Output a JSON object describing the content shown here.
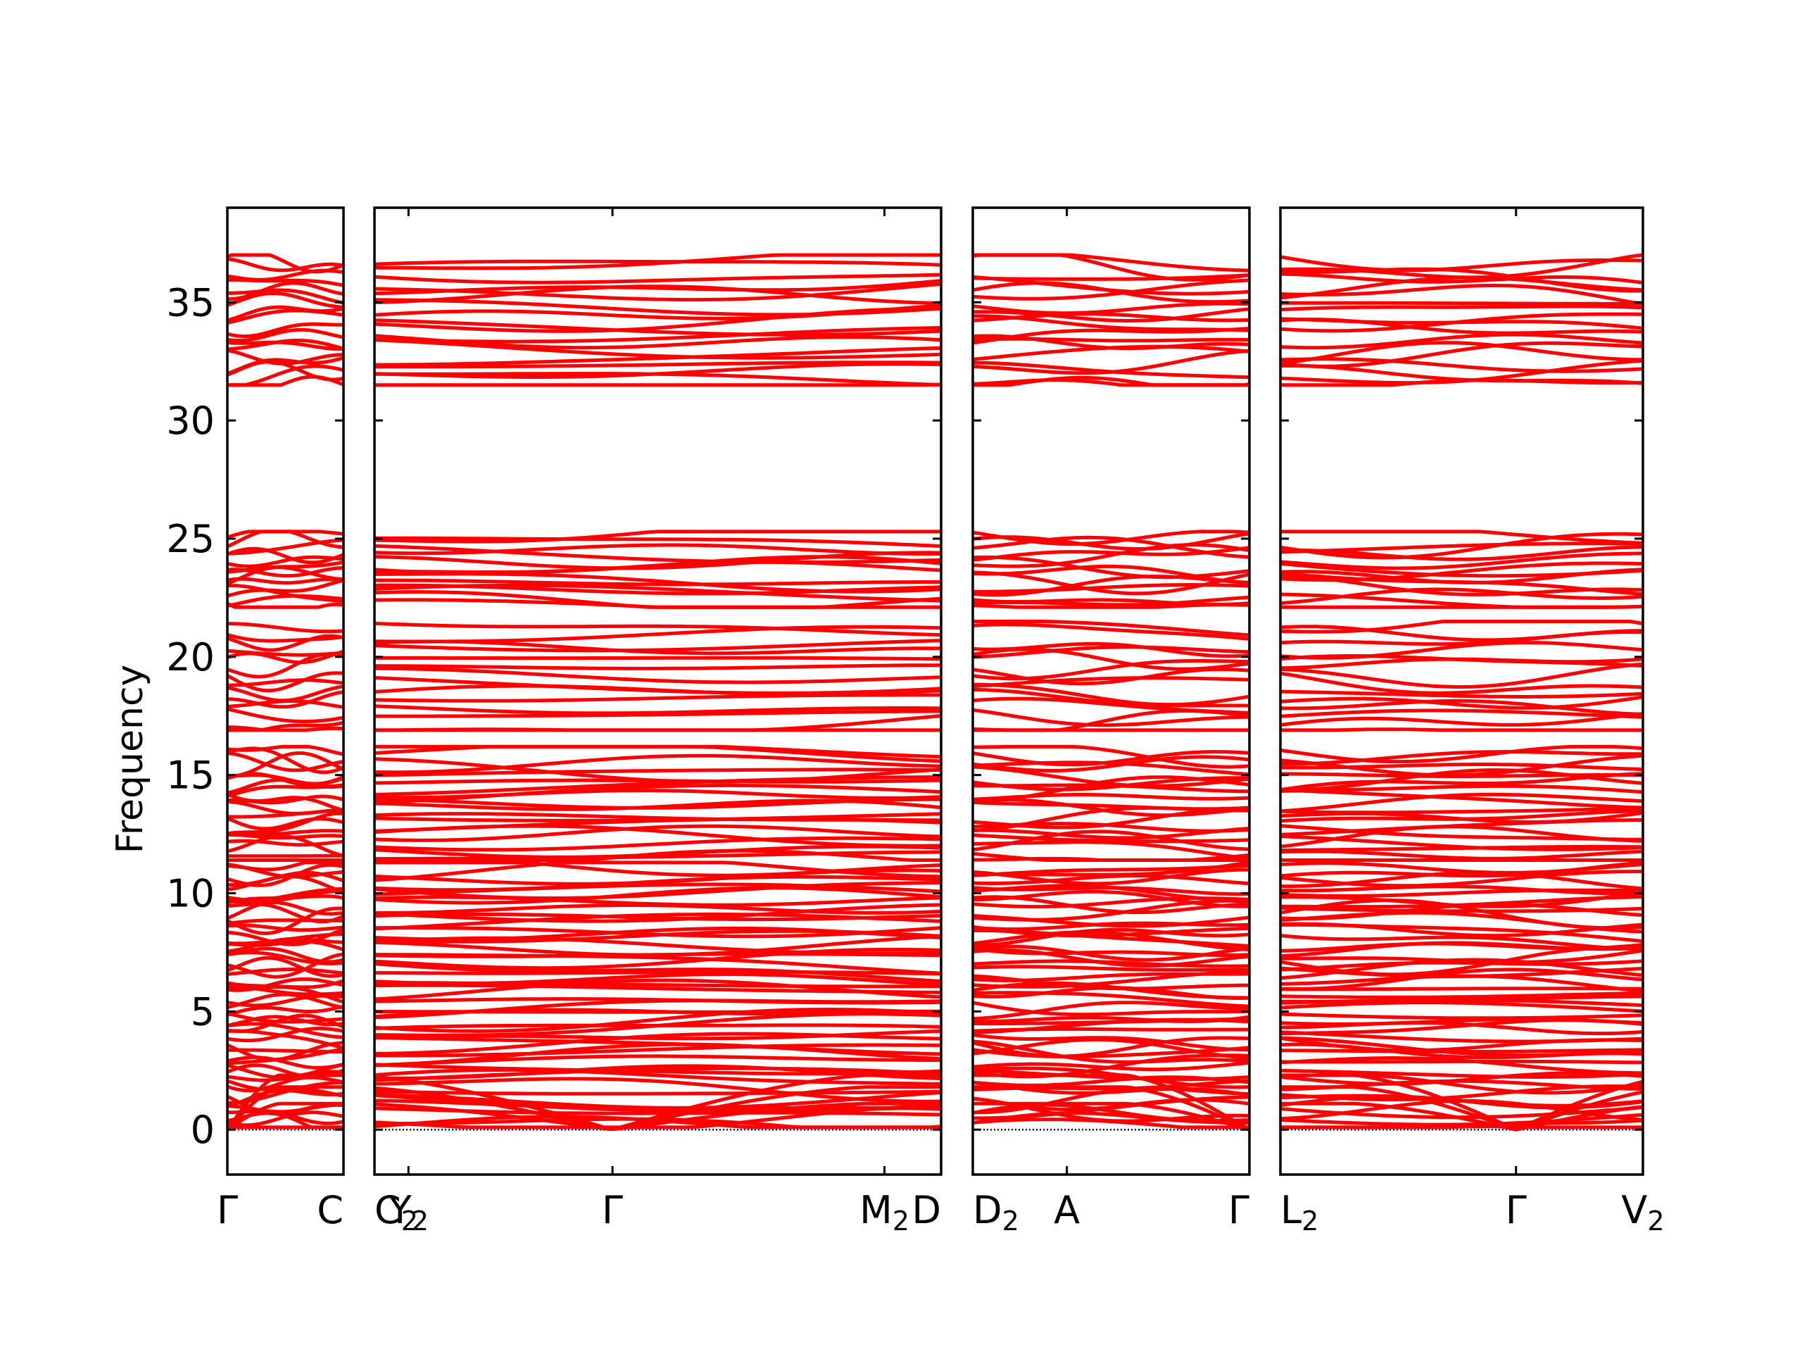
{
  "chart_data": {
    "type": "line",
    "ylabel": "Frequency",
    "ylim": [
      -1.9,
      39.0
    ],
    "yticks": [
      0,
      5,
      10,
      15,
      20,
      25,
      30,
      35
    ],
    "grid": false,
    "legend": "none",
    "band_color": "#ff0000",
    "zero_line_color": "#0000aa",
    "band_groups": [
      {
        "min": 0.0,
        "max": 11.3,
        "count": 52
      },
      {
        "min": 11.3,
        "max": 16.2,
        "count": 20
      },
      {
        "min": 16.8,
        "max": 21.5,
        "count": 14
      },
      {
        "min": 22.0,
        "max": 25.3,
        "count": 13
      },
      {
        "min": 31.4,
        "max": 37.0,
        "count": 18
      }
    ],
    "panels": [
      {
        "id": "p1",
        "ticks": [
          {
            "label": "Γ",
            "sub": "",
            "at": 0.0
          },
          {
            "label": "C",
            "sub": "",
            "at": 1.0
          }
        ],
        "acoustic_zero_at": [
          0.0
        ]
      },
      {
        "id": "p2",
        "ticks": [
          {
            "label": "C",
            "sub": "2",
            "at": 0.0
          },
          {
            "label": "Y",
            "sub": "2",
            "at": 0.06
          },
          {
            "label": "Γ",
            "sub": "",
            "at": 0.42
          },
          {
            "label": "M",
            "sub": "2",
            "at": 0.9
          },
          {
            "label": "D",
            "sub": "",
            "at": 1.0
          }
        ],
        "acoustic_zero_at": [
          0.42
        ]
      },
      {
        "id": "p3",
        "ticks": [
          {
            "label": "D",
            "sub": "2",
            "at": 0.0
          },
          {
            "label": "A",
            "sub": "",
            "at": 0.34
          },
          {
            "label": "Γ",
            "sub": "",
            "at": 1.0
          }
        ],
        "acoustic_zero_at": [
          1.0
        ]
      },
      {
        "id": "p4",
        "ticks": [
          {
            "label": "L",
            "sub": "2",
            "at": 0.0
          },
          {
            "label": "Γ",
            "sub": "",
            "at": 0.65
          },
          {
            "label": "V",
            "sub": "2",
            "at": 1.0
          }
        ],
        "acoustic_zero_at": [
          0.65
        ]
      }
    ]
  }
}
